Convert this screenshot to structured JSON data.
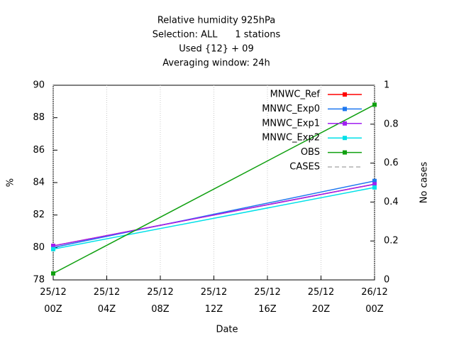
{
  "chart_data": {
    "type": "line",
    "title": [
      "Relative humidity 925hPa",
      "Selection: ALL      1 stations",
      "Used {12} + 09",
      "Averaging window: 24h"
    ],
    "x_label": "Date",
    "y_label": "%",
    "y2_label": "No cases",
    "x": [
      0,
      24
    ],
    "xlim": [
      0,
      24
    ],
    "xticks": [
      {
        "value": 0,
        "label": "25/12 00Z"
      },
      {
        "value": 4,
        "label": "25/12 04Z"
      },
      {
        "value": 8,
        "label": "25/12 08Z"
      },
      {
        "value": 12,
        "label": "25/12 12Z"
      },
      {
        "value": 16,
        "label": "25/12 16Z"
      },
      {
        "value": 20,
        "label": "25/12 20Z"
      },
      {
        "value": 24,
        "label": "26/12 00Z"
      }
    ],
    "ylim": [
      78,
      90
    ],
    "yticks": [
      78,
      80,
      82,
      84,
      86,
      88,
      90
    ],
    "y2lim": [
      0,
      1
    ],
    "y2ticks": [
      0,
      0.2,
      0.4,
      0.6,
      0.8,
      1
    ],
    "grid": "x",
    "legend": "top-right",
    "series": [
      {
        "name": "MNWC_Ref",
        "color": "#ff0000",
        "values": [
          80.1,
          83.9
        ]
      },
      {
        "name": "MNWC_Exp0",
        "color": "#1e78f0",
        "values": [
          80.0,
          84.1
        ]
      },
      {
        "name": "MNWC_Exp1",
        "color": "#a020f0",
        "values": [
          80.1,
          83.9
        ]
      },
      {
        "name": "MNWC_Exp2",
        "color": "#00e0e8",
        "values": [
          79.9,
          83.7
        ]
      },
      {
        "name": "OBS",
        "color": "#10a010",
        "values": [
          78.4,
          88.8
        ]
      },
      {
        "name": "CASES",
        "color": "#b0b0b0",
        "axis": "y2",
        "dash": true,
        "values": [
          null,
          null
        ]
      }
    ]
  }
}
